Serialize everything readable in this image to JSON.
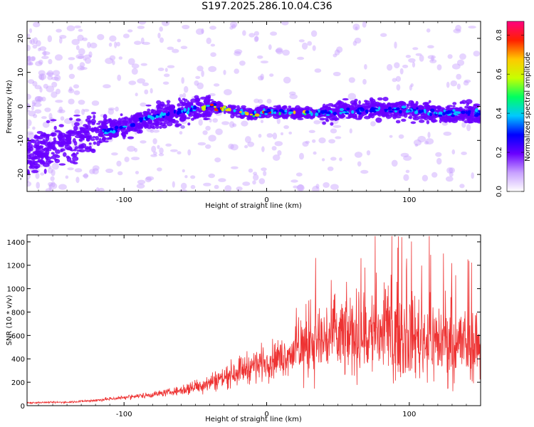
{
  "title": "S197.2025.286.10.04.C36",
  "chart_data": [
    {
      "type": "heatmap",
      "name": "spectrogram",
      "xlabel": "Height of straight line (km)",
      "ylabel": "Frequency (Hz)",
      "xlim": [
        -168,
        150
      ],
      "ylim": [
        -25,
        25
      ],
      "xticks": [
        -100,
        0,
        100
      ],
      "yticks": [
        -20,
        -10,
        0,
        10,
        20
      ],
      "colorbar": {
        "label": "Normalized spectral amplitude",
        "range": [
          0,
          0.87
        ],
        "ticks": [
          0.0,
          0.2,
          0.4,
          0.6,
          0.8
        ],
        "colors": [
          "#ffffff",
          "#c8a0ff",
          "#6a00ff",
          "#0000ff",
          "#00c8ff",
          "#00ff60",
          "#c8ff00",
          "#ffc800",
          "#ff2000",
          "#ff0080"
        ]
      },
      "ridge": [
        {
          "x": -165,
          "y": -14
        },
        {
          "x": -140,
          "y": -11
        },
        {
          "x": -120,
          "y": -8
        },
        {
          "x": -100,
          "y": -6
        },
        {
          "x": -80,
          "y": -3
        },
        {
          "x": -60,
          "y": -1.5
        },
        {
          "x": -40,
          "y": 0
        },
        {
          "x": -25,
          "y": -1
        },
        {
          "x": -10,
          "y": -2.5
        },
        {
          "x": 0,
          "y": -1.5
        },
        {
          "x": 20,
          "y": -2
        },
        {
          "x": 40,
          "y": -2
        },
        {
          "x": 60,
          "y": -1.5
        },
        {
          "x": 80,
          "y": -1
        },
        {
          "x": 100,
          "y": -1
        },
        {
          "x": 120,
          "y": -2
        },
        {
          "x": 150,
          "y": -2
        }
      ]
    },
    {
      "type": "line",
      "name": "snr",
      "xlabel": "Height of straight line (km)",
      "ylabel": "SNR (10 * v/v)",
      "xlim": [
        -168,
        150
      ],
      "ylim": [
        0,
        1460
      ],
      "xticks": [
        -100,
        0,
        100
      ],
      "yticks": [
        0,
        200,
        400,
        600,
        800,
        1000,
        1200,
        1400
      ],
      "color": "#ee3333",
      "envelope": [
        {
          "x": -168,
          "y": 25
        },
        {
          "x": -140,
          "y": 30
        },
        {
          "x": -120,
          "y": 45
        },
        {
          "x": -100,
          "y": 70
        },
        {
          "x": -80,
          "y": 95
        },
        {
          "x": -60,
          "y": 130
        },
        {
          "x": -45,
          "y": 180
        },
        {
          "x": -30,
          "y": 240
        },
        {
          "x": -20,
          "y": 300
        },
        {
          "x": -10,
          "y": 340
        },
        {
          "x": 0,
          "y": 380
        },
        {
          "x": 10,
          "y": 410
        },
        {
          "x": 20,
          "y": 470
        },
        {
          "x": 30,
          "y": 540
        },
        {
          "x": 45,
          "y": 580
        },
        {
          "x": 60,
          "y": 600
        },
        {
          "x": 80,
          "y": 620
        },
        {
          "x": 100,
          "y": 600
        },
        {
          "x": 120,
          "y": 560
        },
        {
          "x": 150,
          "y": 520
        }
      ],
      "peaks": [
        {
          "x": 76,
          "y": 1450
        },
        {
          "x": 92,
          "y": 1350
        },
        {
          "x": 114,
          "y": 1450
        },
        {
          "x": 124,
          "y": 1300
        },
        {
          "x": 141,
          "y": 1250
        }
      ]
    }
  ]
}
